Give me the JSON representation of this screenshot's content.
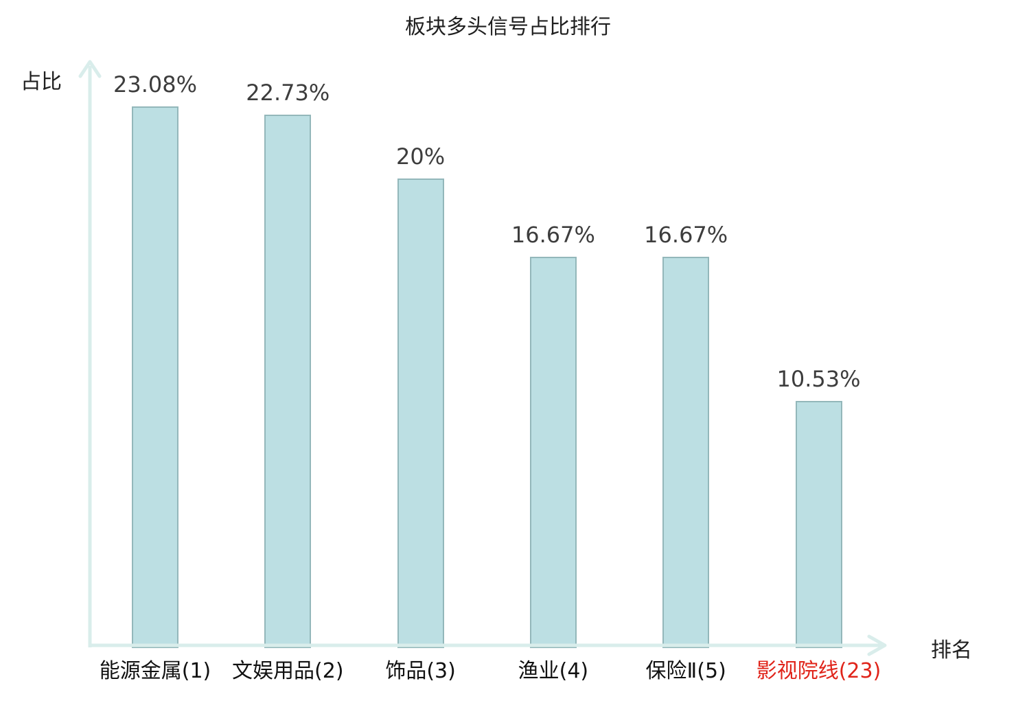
{
  "title": "板块多头信号占比排行",
  "y_axis_label": "占比",
  "x_axis_label": "排名",
  "colors": {
    "bar_fill": "#bcdfe3",
    "bar_border": "#93b7ba",
    "axis": "#d9edeb",
    "title_text": "#1f1f1f",
    "value_text": "#3d3d3d",
    "category_text": "#111111",
    "highlight": "#e0241a"
  },
  "chart_data": {
    "type": "bar",
    "title": "板块多头信号占比排行",
    "xlabel": "排名",
    "ylabel": "占比",
    "categories": [
      "能源金属(1)",
      "文娱用品(2)",
      "饰品(3)",
      "渔业(4)",
      "保险Ⅱ(5)",
      "影视院线(23)"
    ],
    "values": [
      23.08,
      22.73,
      20,
      16.67,
      16.67,
      10.53
    ],
    "value_labels": [
      "23.08%",
      "22.73%",
      "20%",
      "16.67%",
      "16.67%",
      "10.53%"
    ],
    "highlighted_category_index": 5,
    "ylim": [
      0,
      25
    ],
    "grid": false,
    "legend": null,
    "bar_color": "#bcdfe3"
  }
}
